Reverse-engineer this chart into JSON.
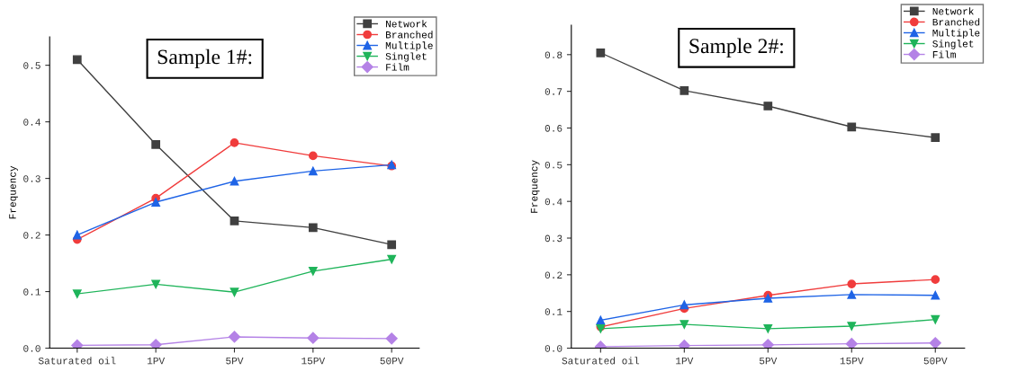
{
  "chart_data": [
    {
      "type": "line",
      "title": "Sample 1#:",
      "ylabel": "Frequency",
      "categories": [
        "Saturated oil",
        "1PV",
        "5PV",
        "15PV",
        "50PV"
      ],
      "series": [
        {
          "name": "Network",
          "color": "#404040",
          "marker": "square",
          "values": [
            0.51,
            0.36,
            0.225,
            0.213,
            0.183
          ]
        },
        {
          "name": "Branched",
          "color": "#f03c3c",
          "marker": "circle",
          "values": [
            0.192,
            0.265,
            0.363,
            0.34,
            0.322
          ]
        },
        {
          "name": "Multiple",
          "color": "#1f64e6",
          "marker": "triangle",
          "values": [
            0.2,
            0.258,
            0.295,
            0.313,
            0.324
          ]
        },
        {
          "name": "Singlet",
          "color": "#1fb45a",
          "marker": "triangle_down",
          "values": [
            0.096,
            0.113,
            0.099,
            0.136,
            0.157
          ]
        },
        {
          "name": "Film",
          "color": "#b482e6",
          "marker": "diamond",
          "values": [
            0.005,
            0.006,
            0.02,
            0.018,
            0.017
          ]
        }
      ],
      "ylim": [
        0,
        0.55
      ],
      "yticks": [
        {
          "value": 0,
          "label": "0.0"
        },
        0.1,
        0.2,
        0.3,
        0.4,
        0.5
      ],
      "legend": "top right",
      "grid": false
    },
    {
      "type": "line",
      "title": "Sample 2#:",
      "ylabel": "Frequency",
      "categories": [
        "Saturated oil",
        "1PV",
        "5PV",
        "15PV",
        "50PV"
      ],
      "series": [
        {
          "name": "Network",
          "color": "#404040",
          "marker": "square",
          "values": [
            0.805,
            0.702,
            0.66,
            0.603,
            0.574
          ]
        },
        {
          "name": "Branched",
          "color": "#f03c3c",
          "marker": "circle",
          "values": [
            0.058,
            0.108,
            0.144,
            0.175,
            0.187
          ]
        },
        {
          "name": "Multiple",
          "color": "#1f64e6",
          "marker": "triangle",
          "values": [
            0.076,
            0.118,
            0.136,
            0.146,
            0.144
          ]
        },
        {
          "name": "Singlet",
          "color": "#1fb45a",
          "marker": "triangle_down",
          "values": [
            0.053,
            0.065,
            0.053,
            0.06,
            0.078
          ]
        },
        {
          "name": "Film",
          "color": "#b482e6",
          "marker": "diamond",
          "values": [
            0.004,
            0.007,
            0.009,
            0.012,
            0.014
          ]
        }
      ],
      "ylim": [
        0,
        0.88
      ],
      "yticks": [
        {
          "value": 0,
          "label": "0.0"
        },
        0.1,
        0.2,
        0.3,
        0.4,
        0.5,
        0.6,
        0.7,
        0.8
      ],
      "legend": "top right",
      "grid": false
    }
  ]
}
